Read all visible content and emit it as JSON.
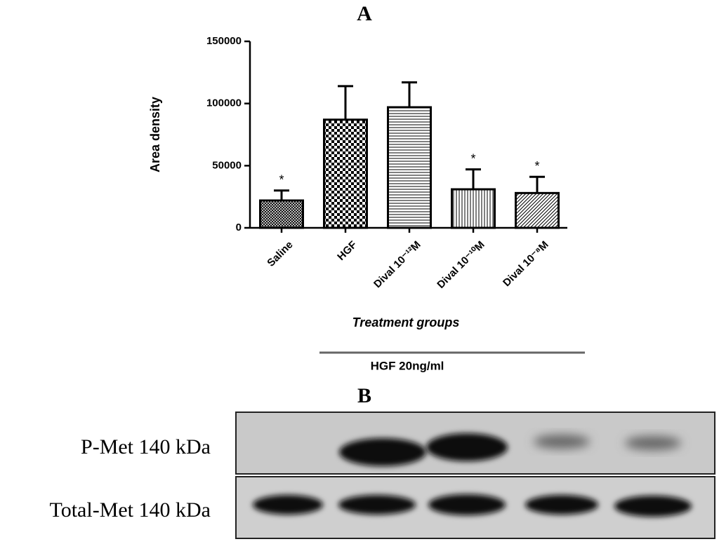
{
  "chart_data": {
    "type": "bar",
    "title": "A",
    "x_label": "Treatment groups",
    "y_label": "Area density",
    "categories": [
      "Saline",
      "HGF",
      "Dival 10⁻¹²M",
      "Dival 10⁻¹⁰M",
      "Dival 10⁻⁸M"
    ],
    "values": [
      22000,
      87000,
      97000,
      31000,
      28000
    ],
    "errors": [
      8000,
      27000,
      20000,
      16000,
      13000
    ],
    "annotations": [
      "*",
      null,
      null,
      "*",
      "*"
    ],
    "patterns": [
      "crosshatch",
      "checker",
      "horizontal",
      "vertical",
      "diagonal"
    ],
    "color": "#000000",
    "ylim": [
      0,
      150000
    ],
    "yticks": [
      0,
      50000,
      100000,
      150000
    ]
  },
  "figure": {
    "bracket_label": "HGF 20ng/ml",
    "panel_b": "B",
    "blot_rows": [
      "P-Met 140 kDa",
      "Total-Met 140 kDa"
    ]
  }
}
